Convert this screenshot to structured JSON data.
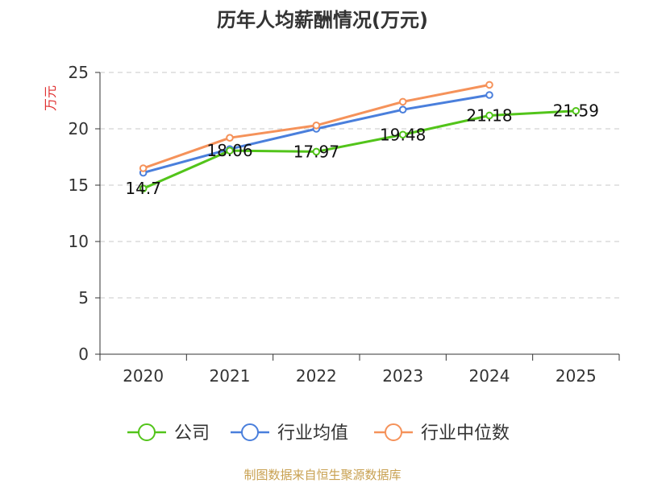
{
  "chart_data": {
    "type": "line",
    "title": "历年人均薪酬情况(万元)",
    "ylabel": "万元",
    "xlabel": "",
    "categories": [
      "2020",
      "2021",
      "2022",
      "2023",
      "2024",
      "2025"
    ],
    "ylim": [
      0,
      25
    ],
    "yticks": [
      0,
      5,
      10,
      15,
      20,
      25
    ],
    "grid": true,
    "legend_position": "bottom",
    "series": [
      {
        "name": "公司",
        "color": "#52c41a",
        "values": [
          14.7,
          18.06,
          17.97,
          19.48,
          21.18,
          21.59
        ],
        "labels": [
          "14.7",
          "18.06",
          "17.97",
          "19.48",
          "21.18",
          "21.59"
        ]
      },
      {
        "name": "行业均值",
        "color": "#4a7fdc",
        "values": [
          16.1,
          18.2,
          20.0,
          21.7,
          23.0,
          null
        ]
      },
      {
        "name": "行业中位数",
        "color": "#f5925a",
        "values": [
          16.5,
          19.2,
          20.3,
          22.4,
          23.9,
          null
        ]
      }
    ]
  },
  "source_text": "制图数据来自恒生聚源数据库"
}
